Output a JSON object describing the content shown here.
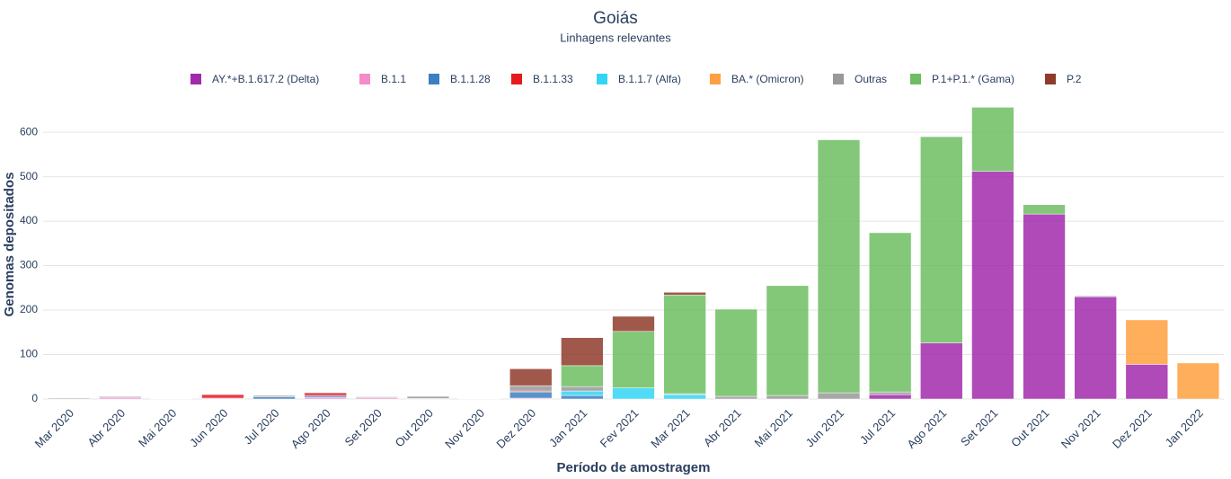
{
  "chart_data": {
    "type": "bar",
    "stacked": true,
    "title": "Goiás",
    "subtitle": "Linhagens relevantes",
    "x_label": "Período de amostragem",
    "y_label": "Genomas depositados",
    "categories": [
      "Mar 2020",
      "Abr 2020",
      "Mai 2020",
      "Jun 2020",
      "Jul 2020",
      "Ago 2020",
      "Set 2020",
      "Out 2020",
      "Nov 2020",
      "Dez 2020",
      "Jan 2021",
      "Fev 2021",
      "Mar 2021",
      "Abr 2021",
      "Mai 2021",
      "Jun 2021",
      "Jul 2021",
      "Ago 2021",
      "Set 2021",
      "Out 2021",
      "Nov 2021",
      "Dez 2021",
      "Jan 2022"
    ],
    "series": [
      {
        "name": "AY.*+B.1.617.2 (Delta)",
        "color": "#a12aab",
        "values": [
          0,
          0,
          0,
          0,
          0,
          0,
          0,
          0,
          0,
          0,
          0,
          0,
          0,
          0,
          0,
          0,
          10,
          126,
          512,
          416,
          230,
          78,
          0
        ]
      },
      {
        "name": "B.1.1",
        "color": "#f58bc8",
        "values": [
          0,
          4,
          0,
          2,
          0,
          4,
          3,
          1,
          0,
          2,
          0,
          0,
          0,
          0,
          0,
          0,
          0,
          0,
          0,
          0,
          0,
          0,
          0
        ]
      },
      {
        "name": "B.1.1.28",
        "color": "#3d7fc1",
        "values": [
          0,
          0,
          0,
          0,
          5,
          4,
          0,
          0,
          0,
          14,
          8,
          0,
          0,
          0,
          0,
          0,
          0,
          0,
          0,
          0,
          0,
          0,
          0
        ]
      },
      {
        "name": "B.1.1.33",
        "color": "#e41a1c",
        "values": [
          0,
          0,
          0,
          8,
          0,
          6,
          0,
          0,
          0,
          2,
          0,
          0,
          0,
          0,
          0,
          0,
          0,
          0,
          0,
          0,
          0,
          0,
          0
        ]
      },
      {
        "name": "B.1.1.7 (Alfa)",
        "color": "#33d5f5",
        "values": [
          0,
          0,
          0,
          0,
          0,
          0,
          0,
          0,
          0,
          0,
          10,
          25,
          10,
          0,
          0,
          0,
          0,
          0,
          0,
          0,
          0,
          0,
          0
        ]
      },
      {
        "name": "BA.* (Omicron)",
        "color": "#ffa040",
        "values": [
          0,
          0,
          0,
          0,
          0,
          0,
          0,
          0,
          0,
          0,
          0,
          0,
          0,
          0,
          0,
          0,
          0,
          0,
          0,
          0,
          0,
          100,
          81
        ]
      },
      {
        "name": "Outras",
        "color": "#999999",
        "values": [
          2,
          2,
          1,
          0,
          3,
          0,
          2,
          5,
          1,
          12,
          10,
          0,
          2,
          6,
          8,
          14,
          6,
          0,
          0,
          0,
          2,
          0,
          0
        ]
      },
      {
        "name": "P.1+P.1.* (Gama)",
        "color": "#6dbe62",
        "values": [
          0,
          0,
          0,
          0,
          0,
          0,
          0,
          0,
          0,
          0,
          47,
          127,
          222,
          196,
          247,
          569,
          358,
          464,
          144,
          21,
          0,
          0,
          0
        ]
      },
      {
        "name": "P.2",
        "color": "#8f3b2a",
        "values": [
          0,
          0,
          0,
          0,
          0,
          0,
          0,
          0,
          0,
          38,
          63,
          34,
          6,
          0,
          0,
          0,
          0,
          0,
          0,
          0,
          0,
          0,
          0
        ]
      }
    ],
    "ylim": [
      0,
      675
    ],
    "yticks": [
      0,
      100,
      200,
      300,
      400,
      500,
      600
    ],
    "grid": true
  }
}
